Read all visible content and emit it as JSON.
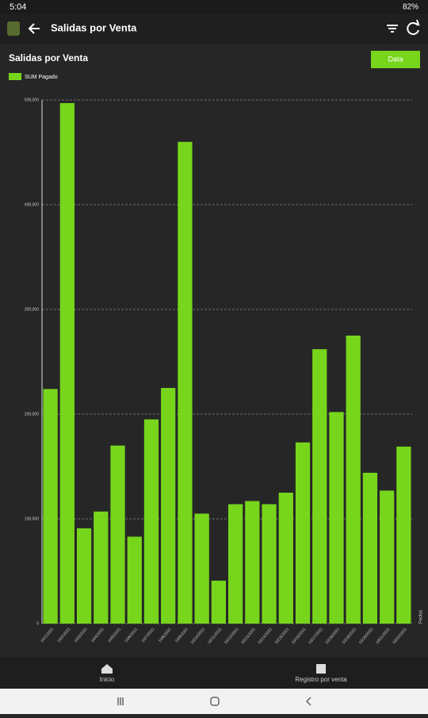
{
  "status": {
    "time": "5:04",
    "battery": "82%"
  },
  "app_bar": {
    "title": "Salidas por Venta"
  },
  "bottom_nav": {
    "items": [
      "Inicio",
      "Registro por venta"
    ]
  },
  "chart_data": {
    "type": "bar",
    "title": "Salidas por Venta",
    "button": "Data",
    "x_label": "Fecha",
    "categories": [
      "10/1/2021",
      "10/2/2021",
      "10/3/2021",
      "10/4/2021",
      "10/5/2021",
      "10/6/2021",
      "10/7/2021",
      "10/8/2021",
      "10/9/2021",
      "10/10/2021",
      "10/11/2021",
      "10/12/2021",
      "10/13/2021",
      "10/14/2021",
      "10/15/2021",
      "10/16/2021",
      "10/17/2021",
      "10/18/2021",
      "10/19/2021",
      "10/20/2021",
      "10/21/2021",
      "10/22/2021"
    ],
    "series": [
      {
        "name": "SUM Pagado",
        "color": "#77d61c",
        "values": [
          224000,
          497000,
          91000,
          107000,
          170000,
          83000,
          195000,
          225000,
          460000,
          105000,
          41000,
          114000,
          117000,
          114000,
          125000,
          173000,
          262000,
          202000,
          275000,
          144000,
          127000,
          169000
        ]
      }
    ],
    "ylim": [
      0,
      500000
    ],
    "yticks": [
      {
        "value": 0,
        "label": "0"
      },
      {
        "value": 100000,
        "label": "100,000"
      },
      {
        "value": 200000,
        "label": "200,000"
      },
      {
        "value": 300000,
        "label": "300,000"
      },
      {
        "value": 400000,
        "label": "400,000"
      },
      {
        "value": 500000,
        "label": "500,000"
      }
    ],
    "grid": true
  }
}
